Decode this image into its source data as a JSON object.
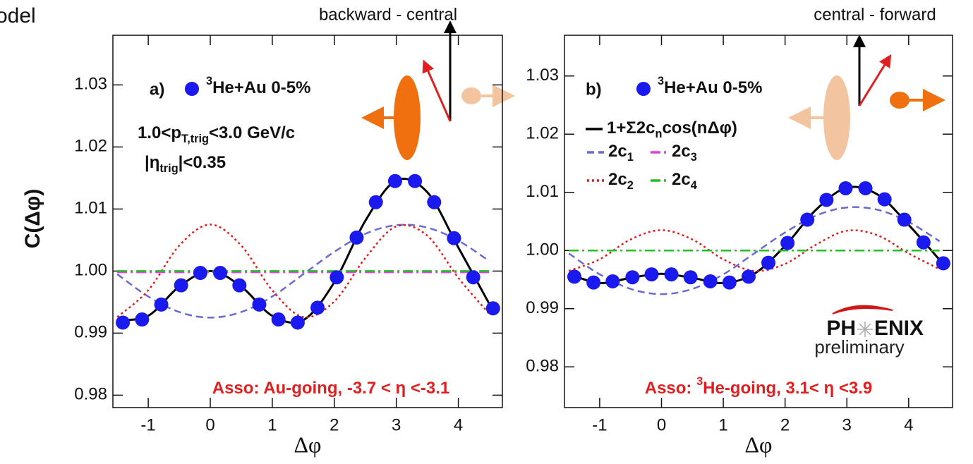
{
  "cropped_text": "odel",
  "logo": {
    "left": "PH",
    "right": "ENIX",
    "subtitle": "preliminary"
  },
  "chart_data": [
    {
      "type": "line",
      "panel_label": "a)",
      "top_label": "backward - central",
      "xlabel": "Δφ",
      "ylabel": "C(Δφ)",
      "xlim": [
        -1.57,
        4.71
      ],
      "xticks": [
        -1,
        0,
        1,
        2,
        3,
        4
      ],
      "ylim": [
        0.978,
        1.038
      ],
      "yticks": [
        0.98,
        0.99,
        {
          "value": 1.0,
          "label": "1.00"
        },
        1.01,
        1.02,
        1.03
      ],
      "annotations": [
        [
          "1.0<p",
          {
            "text": "T,trig",
            "shift": "sub"
          },
          "<3.0 GeV/c"
        ],
        [
          "|η",
          {
            "text": "trig",
            "shift": "sub"
          },
          "|<0.35"
        ]
      ],
      "footnote": [
        "Asso: Au-going, -3.7 < η <-3.1"
      ],
      "series": [
        {
          "name": [
            {
              "text": "3",
              "shift": "sup"
            },
            "He+Au 0-5%"
          ],
          "color": "#1a1aee",
          "style": "markers",
          "x": [
            -1.41,
            -1.1,
            -0.79,
            -0.47,
            -0.16,
            0.16,
            0.47,
            0.79,
            1.1,
            1.41,
            1.73,
            2.04,
            2.36,
            2.67,
            2.98,
            3.3,
            3.61,
            3.93,
            4.24,
            4.56
          ],
          "values": [
            0.9917,
            0.9922,
            0.9946,
            0.9977,
            0.9997,
            0.9997,
            0.9977,
            0.9946,
            0.9922,
            0.9917,
            0.9941,
            0.999,
            1.0054,
            1.0111,
            1.0145,
            1.0145,
            1.0111,
            1.0053,
            0.999,
            0.994
          ]
        },
        {
          "color": "#000000",
          "style": "solid",
          "x": [
            -1.5,
            -1,
            -0.5,
            0,
            0.5,
            1,
            1.5,
            2,
            2.5,
            3,
            3.5,
            4,
            4.5
          ],
          "values": [
            0.9921,
            0.9928,
            0.9975,
            1.0,
            0.9975,
            0.9928,
            0.9921,
            0.9982,
            1.0081,
            1.0146,
            1.0127,
            1.0038,
            0.9947
          ]
        },
        {
          "color": "#6a6ad0",
          "style": "dashed",
          "x": [
            -1.5,
            -1,
            -0.5,
            0,
            0.5,
            1,
            1.5,
            2,
            2.5,
            3,
            3.5,
            4,
            4.5
          ],
          "values": [
            0.9995,
            0.9959,
            0.9934,
            0.9925,
            0.9934,
            0.9959,
            0.9995,
            1.0031,
            1.006,
            1.0074,
            1.007,
            1.0049,
            1.0016
          ]
        },
        {
          "color": "#e02020",
          "style": "dotted",
          "x": [
            -1.5,
            -1,
            -0.5,
            0,
            0.5,
            1,
            1.5,
            2,
            2.5,
            3,
            3.5,
            4,
            4.5
          ],
          "values": [
            0.9926,
            0.9969,
            1.0041,
            1.0075,
            1.0041,
            0.9969,
            0.9926,
            0.9951,
            1.0021,
            1.0072,
            1.0057,
            0.9989,
            0.9931
          ]
        },
        {
          "color": "#e040e0",
          "style": "dashdot",
          "x": [
            -1.5,
            -1,
            -0.5,
            0,
            0.5,
            1,
            1.5,
            2,
            2.5,
            3,
            3.5,
            4,
            4.5
          ],
          "values": [
            0.9998,
            0.9998,
            0.9998,
            0.9998,
            0.9998,
            0.9998,
            0.9998,
            0.9998,
            0.9998,
            0.9998,
            0.9998,
            0.9998,
            0.9998
          ]
        },
        {
          "color": "#20c020",
          "style": "dashdot",
          "x": [
            -1.5,
            -1,
            -0.5,
            0,
            0.5,
            1,
            1.5,
            2,
            2.5,
            3,
            3.5,
            4,
            4.5
          ],
          "values": [
            1.0,
            1.0,
            1.0,
            1.0,
            1.0,
            1.0,
            1.0,
            1.0,
            1.0,
            1.0,
            1.0,
            1.0,
            1.0
          ]
        }
      ]
    },
    {
      "type": "line",
      "panel_label": "b)",
      "top_label": "central - forward",
      "xlabel": "Δφ",
      "xlim": [
        -1.57,
        4.71
      ],
      "xticks": [
        -1,
        0,
        1,
        2,
        3,
        4
      ],
      "ylim": [
        0.973,
        1.037
      ],
      "yticks": [
        0.98,
        0.99,
        {
          "value": 1.0,
          "label": "1.00"
        },
        1.01,
        1.02,
        1.03
      ],
      "footnote": [
        "Asso: ",
        {
          "text": "3",
          "shift": "sup"
        },
        "He-going, 3.1< η <3.9"
      ],
      "series": [
        {
          "name": [
            {
              "text": "3",
              "shift": "sup"
            },
            "He+Au 0-5%"
          ],
          "color": "#1a1aee",
          "style": "markers",
          "x": [
            -1.41,
            -1.1,
            -0.79,
            -0.47,
            -0.16,
            0.16,
            0.47,
            0.79,
            1.1,
            1.41,
            1.73,
            2.04,
            2.36,
            2.67,
            2.98,
            3.3,
            3.61,
            3.93,
            4.24,
            4.56
          ],
          "values": [
            0.9955,
            0.9945,
            0.9947,
            0.9954,
            0.9959,
            0.9959,
            0.9954,
            0.9947,
            0.9945,
            0.9955,
            0.9979,
            1.0013,
            1.0053,
            1.0087,
            1.0107,
            1.0107,
            1.0088,
            1.0053,
            1.0014,
            0.9978
          ]
        },
        {
          "name": [
            "1+Σ2c",
            {
              "text": "n",
              "shift": "sub"
            },
            "cos(nΔφ)"
          ],
          "color": "#000000",
          "style": "solid",
          "x": [
            -1.5,
            -1,
            -0.5,
            0,
            0.5,
            1,
            1.5,
            2,
            2.5,
            3,
            3.5,
            4,
            4.5
          ],
          "values": [
            0.996,
            0.9944,
            0.9953,
            0.996,
            0.9953,
            0.9944,
            0.996,
            1.0008,
            1.007,
            1.0108,
            1.0096,
            1.0044,
            0.9984
          ]
        },
        {
          "name": [
            "2c",
            {
              "text": "1",
              "shift": "sub"
            }
          ],
          "color": "#6a6ad0",
          "style": "dashed",
          "x": [
            -1.5,
            -1,
            -0.5,
            0,
            0.5,
            1,
            1.5,
            2,
            2.5,
            3,
            3.5,
            4,
            4.5
          ],
          "values": [
            0.9995,
            0.9959,
            0.9934,
            0.9925,
            0.9934,
            0.9959,
            0.9995,
            1.0031,
            1.006,
            1.0074,
            1.007,
            1.0049,
            1.0016
          ]
        },
        {
          "name": [
            "2c",
            {
              "text": "2",
              "shift": "sub"
            }
          ],
          "color": "#e02020",
          "style": "dotted",
          "x": [
            -1.5,
            -1,
            -0.5,
            0,
            0.5,
            1,
            1.5,
            2,
            2.5,
            3,
            3.5,
            4,
            4.5
          ],
          "values": [
            0.9965,
            0.9985,
            1.0019,
            1.0035,
            1.0019,
            0.9985,
            0.9965,
            0.9977,
            1.001,
            1.0034,
            1.0026,
            0.9995,
            0.9968
          ]
        },
        {
          "name": [
            "2c",
            {
              "text": "3",
              "shift": "sub"
            }
          ],
          "color": "#e040e0",
          "style": "dashdot",
          "x": [
            -1.5,
            -1,
            -0.5,
            0,
            0.5,
            1,
            1.5,
            2,
            2.5,
            3,
            3.5,
            4,
            4.5
          ],
          "values": [
            1.0,
            1.0,
            1.0,
            1.0,
            1.0,
            1.0,
            1.0,
            1.0,
            1.0,
            1.0,
            1.0,
            1.0,
            1.0
          ]
        },
        {
          "name": [
            "2c",
            {
              "text": "4",
              "shift": "sub"
            }
          ],
          "color": "#20c020",
          "style": "dashdot",
          "x": [
            -1.5,
            -1,
            -0.5,
            0,
            0.5,
            1,
            1.5,
            2,
            2.5,
            3,
            3.5,
            4,
            4.5
          ],
          "values": [
            1.0,
            1.0,
            1.0,
            1.0,
            1.0,
            1.0,
            1.0,
            1.0,
            1.0,
            1.0,
            1.0,
            1.0,
            1.0
          ]
        }
      ]
    }
  ]
}
